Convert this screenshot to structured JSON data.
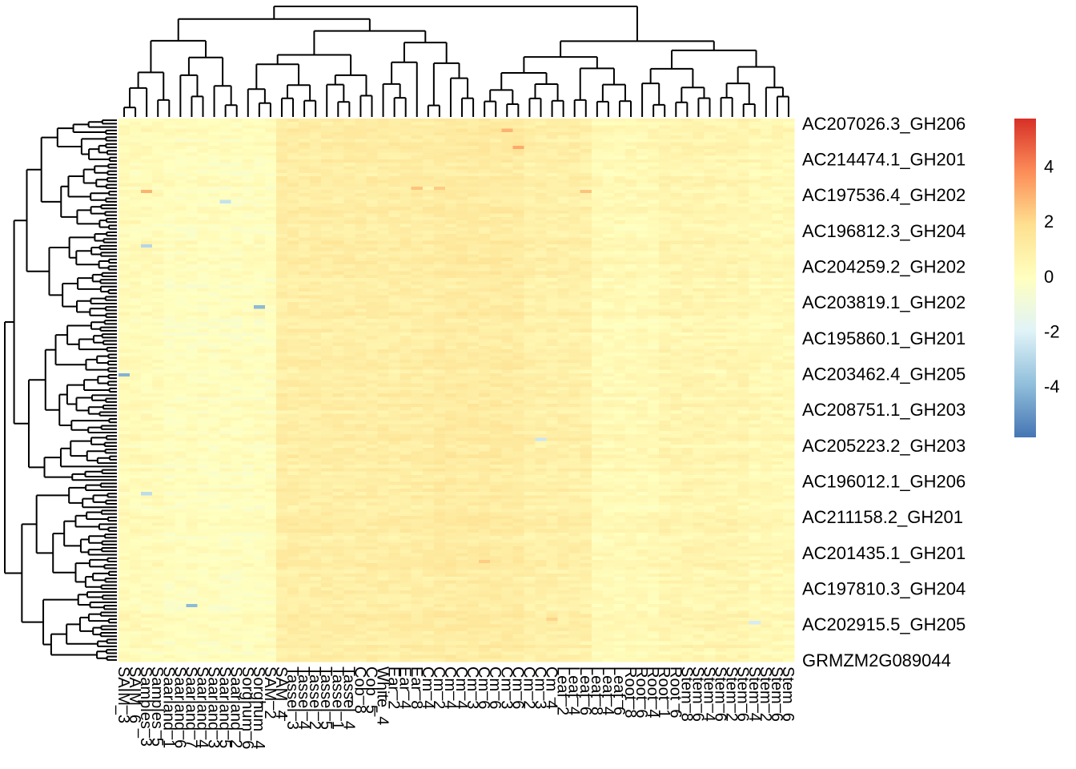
{
  "chart_data": {
    "type": "heatmap",
    "title": "",
    "xlabel": "",
    "ylabel": "",
    "n_rows": 160,
    "n_cols": 60,
    "value_range": [
      -5.5,
      5.8
    ],
    "column_block_means": [
      0.25,
      0.05,
      1.05,
      1.2,
      0.9,
      0.35,
      0.6,
      0.4
    ],
    "column_block_ends": [
      4,
      14,
      28,
      36,
      42,
      48,
      56,
      60
    ],
    "hot_spots": [
      {
        "row": 3,
        "col": 34,
        "value": 3.0
      },
      {
        "row": 8,
        "col": 35,
        "value": 3.2
      },
      {
        "row": 20,
        "col": 26,
        "value": 2.6
      },
      {
        "row": 20,
        "col": 28,
        "value": 2.4
      },
      {
        "row": 21,
        "col": 2,
        "value": 3.0
      },
      {
        "row": 21,
        "col": 41,
        "value": 2.6
      },
      {
        "row": 24,
        "col": 9,
        "value": -2.6
      },
      {
        "row": 37,
        "col": 2,
        "value": -3.0
      },
      {
        "row": 55,
        "col": 12,
        "value": -4.0
      },
      {
        "row": 75,
        "col": 0,
        "value": -4.2
      },
      {
        "row": 94,
        "col": 37,
        "value": -2.4
      },
      {
        "row": 110,
        "col": 2,
        "value": -2.8
      },
      {
        "row": 130,
        "col": 32,
        "value": 2.4
      },
      {
        "row": 143,
        "col": 6,
        "value": -4.0
      },
      {
        "row": 147,
        "col": 38,
        "value": 2.2
      },
      {
        "row": 148,
        "col": 56,
        "value": -2.2
      }
    ],
    "legend": {
      "position": "right",
      "ticks": [
        "4",
        "2",
        "0",
        "-2",
        "-4"
      ],
      "tick_values": [
        4,
        2,
        0,
        -2,
        -4
      ],
      "range": [
        -5.8,
        5.8
      ],
      "colors": [
        "#4575b4",
        "#91bfdb",
        "#e0f3f8",
        "#ffffbf",
        "#fee090",
        "#fc8d59",
        "#d73027"
      ]
    },
    "row_labels": [
      "AC207026.3_GH206",
      "AC214474.1_GH201",
      "AC197536.4_GH202",
      "AC196812.3_GH204",
      "AC204259.2_GH202",
      "AC203819.1_GH202",
      "AC195860.1_GH201",
      "AC203462.4_GH205",
      "AC208751.1_GH203",
      "AC205223.2_GH203",
      "AC196012.1_GH206",
      "AC211158.2_GH201",
      "AC201435.1_GH201",
      "AC197810.3_GH204",
      "AC202915.5_GH205",
      "GRMZM2G089044"
    ],
    "col_labels": [
      "SAIM_3",
      "SAIM_6",
      "Samples_3",
      "Samples_5",
      "Saarland_1",
      "Saarland_6",
      "Saarland_7",
      "Saarland_4",
      "Saarland_3",
      "Saarland_5",
      "Saarland_2",
      "Sorghum_6",
      "Sorghum_4",
      "SAM_2",
      "SAM_4",
      "Tassel_3",
      "Tassel_4",
      "Tassel_2",
      "Tassel_5",
      "Tassel_1",
      "Tassel_4",
      "Cob_8",
      "Cob_5",
      "White_4",
      "Ear_2",
      "Ear_4",
      "Ear_8",
      "Cm_4",
      "Cm_2",
      "Cm_4",
      "Cm_4",
      "Cm_3",
      "Cm_6",
      "Cm_6",
      "Cm_3",
      "Cm_6",
      "Cm_2",
      "Cm_3",
      "Cm_4",
      "Leaf_2",
      "Leaf_4",
      "Leaf_6",
      "Leaf_8",
      "Leaf_4",
      "Leaf_6",
      "Root_8",
      "Root_6",
      "Root_4",
      "Root_1",
      "Root_6",
      "Stem_8",
      "Stem_6",
      "Stem_4",
      "Stem_6",
      "Stem_2",
      "Stem_6",
      "Stem_4",
      "Stem_2",
      "Stem_6",
      "Stem_6"
    ]
  }
}
